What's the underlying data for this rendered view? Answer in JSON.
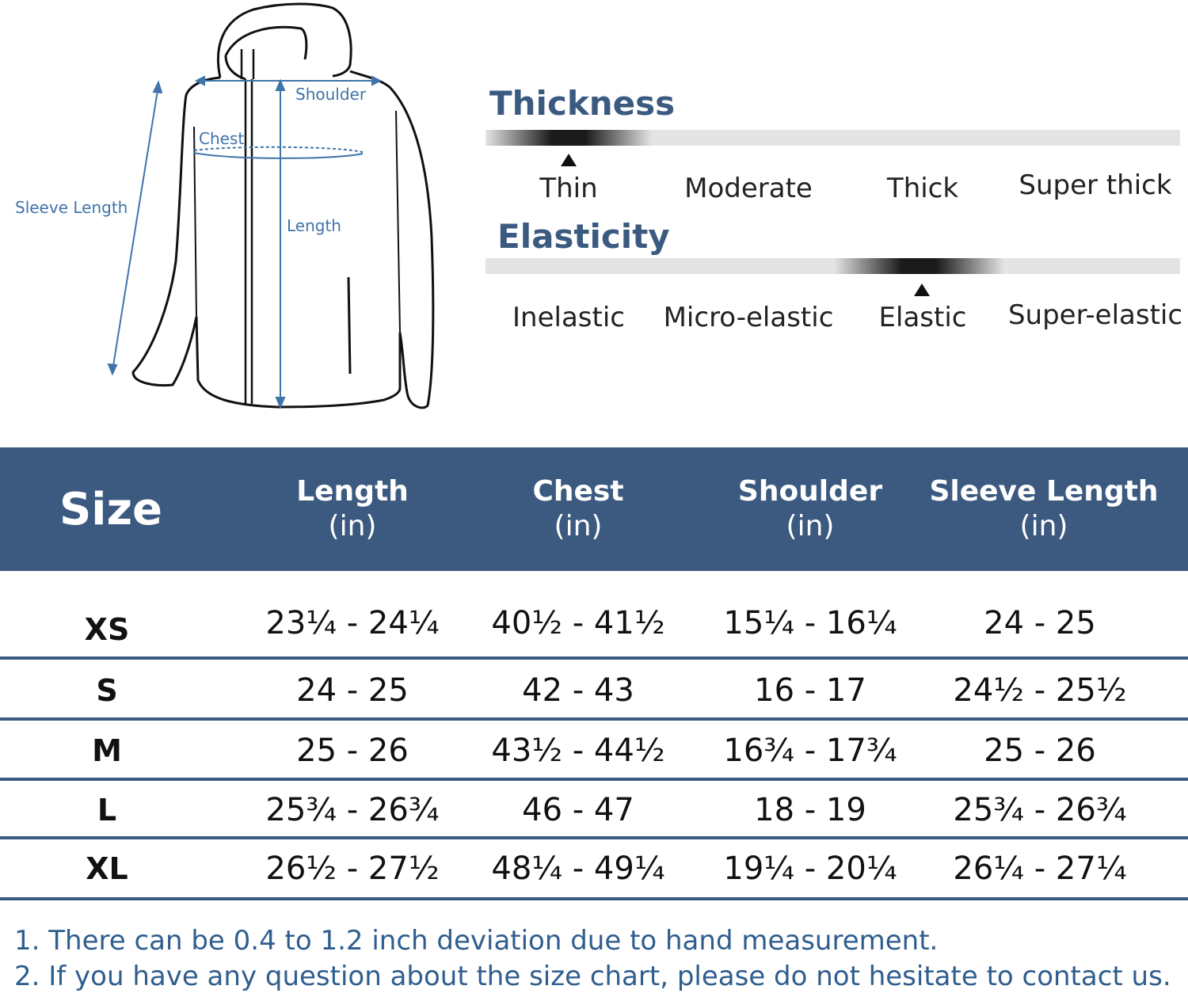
{
  "diagram": {
    "labels": {
      "shoulder": "Shoulder",
      "chest": "Chest",
      "sleeve_length": "Sleeve Length",
      "length": "Length"
    },
    "line_color": "#3f74a9"
  },
  "thickness": {
    "title": "Thickness",
    "options": [
      "Thin",
      "Moderate",
      "Thick",
      "Super thick"
    ],
    "selected": "Thin"
  },
  "elasticity": {
    "title": "Elasticity",
    "options": [
      "Inelastic",
      "Micro-elastic",
      "Elastic",
      "Super-elastic"
    ],
    "selected": "Elastic"
  },
  "size_table": {
    "header": {
      "size": "Size",
      "columns": [
        {
          "name": "Length",
          "unit": "(in)"
        },
        {
          "name": "Chest",
          "unit": "(in)"
        },
        {
          "name": "Shoulder",
          "unit": "(in)"
        },
        {
          "name": "Sleeve Length",
          "unit": "(in)"
        }
      ]
    },
    "rows": [
      {
        "size": "XS",
        "length": "23¼ - 24¼",
        "chest": "40½ - 41½",
        "shoulder": "15¼ - 16¼",
        "sleeve": "24 - 25"
      },
      {
        "size": "S",
        "length": "24 - 25",
        "chest": "42 - 43",
        "shoulder": "16 - 17",
        "sleeve": "24½ - 25½"
      },
      {
        "size": "M",
        "length": "25 - 26",
        "chest": "43½ - 44½",
        "shoulder": "16¾ - 17¾",
        "sleeve": "25 - 26"
      },
      {
        "size": "L",
        "length": "25¾ - 26¾",
        "chest": "46 - 47",
        "shoulder": "18 - 19",
        "sleeve": "25¾ - 26¾"
      },
      {
        "size": "XL",
        "length": "26½ - 27½",
        "chest": "48¼ - 49¼",
        "shoulder": "19¼ - 20¼",
        "sleeve": "26¼ - 27¼"
      }
    ],
    "header_color": "#3c5a80"
  },
  "notes": [
    "1. There can be 0.4 to 1.2 inch deviation due to hand measurement.",
    "2. If you have any question about the size chart, please do not hesitate to contact us."
  ]
}
